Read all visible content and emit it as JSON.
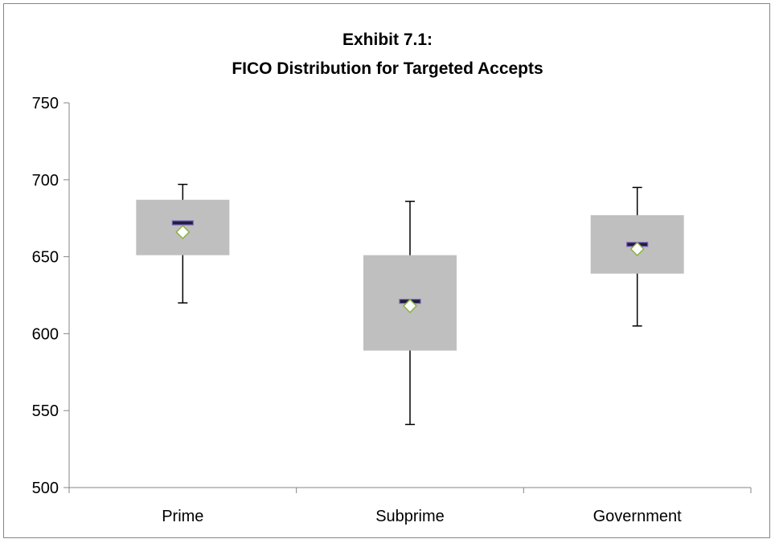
{
  "chart_data": {
    "type": "box",
    "title": [
      "Exhibit 7.1:",
      "FICO Distribution for Targeted Accepts"
    ],
    "xlabel": "",
    "ylabel": "",
    "ylim": [
      500,
      750
    ],
    "yticks": [
      500,
      550,
      600,
      650,
      700,
      750
    ],
    "yticks_labels": [
      "500",
      "550",
      "600",
      "650",
      "700",
      "750"
    ],
    "categories": [
      "Prime",
      "Subprime",
      "Government"
    ],
    "boxes": [
      {
        "category": "Prime",
        "min": 620,
        "q1": 651,
        "median": 672,
        "q3": 687,
        "max": 697,
        "mean": 666
      },
      {
        "category": "Subprime",
        "min": 541,
        "q1": 589,
        "median": 621,
        "q3": 651,
        "max": 686,
        "mean": 618
      },
      {
        "category": "Government",
        "min": 605,
        "q1": 639,
        "median": 658,
        "q3": 677,
        "max": 695,
        "mean": 655
      }
    ],
    "grid": false,
    "legend": "none",
    "colors": {
      "box_fill": "#bfbfbf",
      "whisker": "#000000",
      "median_fill": "#1f1f3d",
      "median_stroke": "#7f5fbf",
      "mean_fill": "#ffffff",
      "mean_stroke": "#8db04a",
      "axis": "#868686"
    }
  }
}
